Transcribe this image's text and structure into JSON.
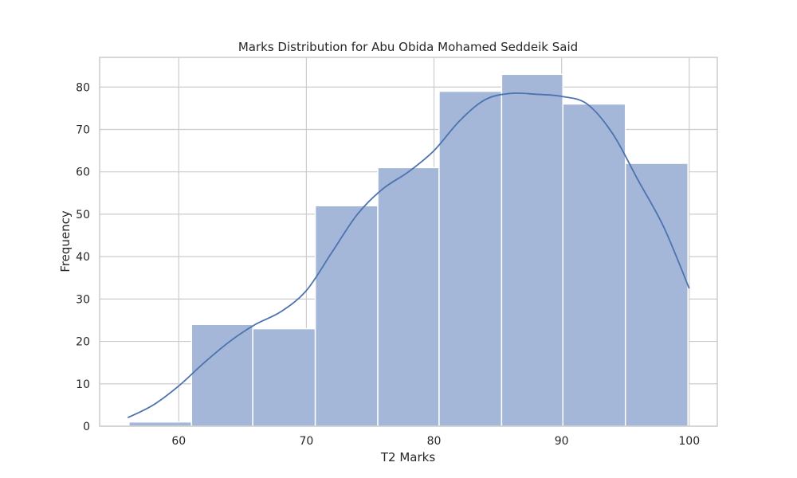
{
  "chart_data": {
    "type": "bar",
    "title": "Marks Distribution for Abu Obida Mohamed Seddeik Said",
    "xlabel": "T2 Marks",
    "ylabel": "Frequency",
    "bins": [
      {
        "start": 56.1,
        "end": 61.0,
        "count": 1
      },
      {
        "start": 61.0,
        "end": 65.8,
        "count": 24
      },
      {
        "start": 65.8,
        "end": 70.7,
        "count": 23
      },
      {
        "start": 70.7,
        "end": 75.6,
        "count": 52
      },
      {
        "start": 75.6,
        "end": 80.4,
        "count": 61
      },
      {
        "start": 80.4,
        "end": 85.3,
        "count": 79
      },
      {
        "start": 85.3,
        "end": 90.1,
        "count": 83
      },
      {
        "start": 90.1,
        "end": 95.0,
        "count": 76
      },
      {
        "start": 95.0,
        "end": 99.9,
        "count": 62
      }
    ],
    "kde": {
      "x": [
        56,
        58,
        60,
        62,
        64,
        66,
        68,
        70,
        72,
        74,
        76,
        78,
        80,
        82,
        84,
        86,
        88,
        90,
        92,
        94,
        96,
        98,
        100
      ],
      "y": [
        2,
        5,
        9.5,
        15,
        20,
        24,
        27,
        32,
        41,
        50,
        56,
        60,
        65,
        72,
        77,
        78.5,
        78.3,
        77.8,
        76,
        69,
        58,
        47,
        32.5
      ]
    },
    "x_ticks": [
      60,
      70,
      80,
      90,
      100
    ],
    "y_ticks": [
      0,
      10,
      20,
      30,
      40,
      50,
      60,
      70,
      80
    ],
    "xlim": [
      53.8,
      102.2
    ],
    "ylim": [
      0,
      87
    ],
    "grid": true,
    "colors": {
      "bar_fill": "#a4b7d8",
      "bar_edge": "#ffffff",
      "kde_line": "#4c72b0",
      "grid": "#cccccc",
      "axes_edge": "#cccccc",
      "background": "#ffffff"
    }
  }
}
